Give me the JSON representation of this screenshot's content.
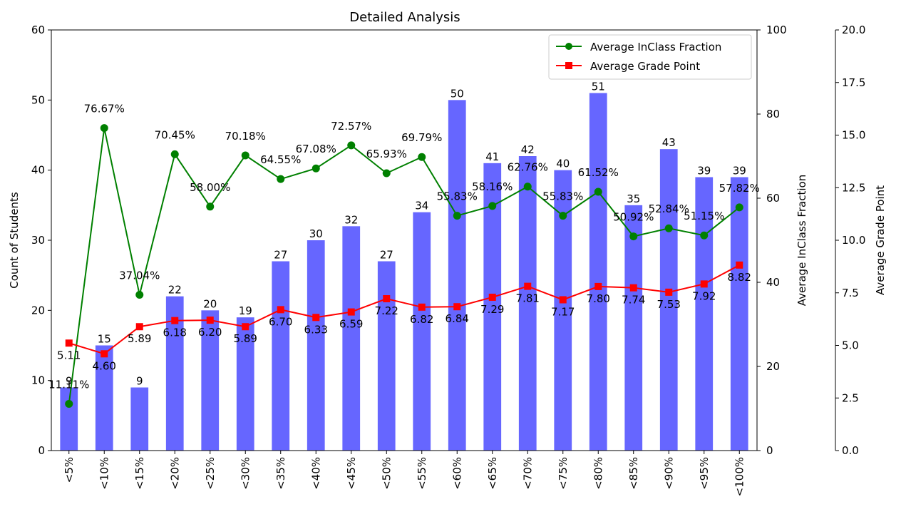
{
  "chart_data": {
    "type": "bar",
    "title": "Detailed Analysis",
    "categories": [
      "<5%",
      "<10%",
      "<15%",
      "<20%",
      "<25%",
      "<30%",
      "<35%",
      "<40%",
      "<45%",
      "<50%",
      "<55%",
      "<60%",
      "<65%",
      "<70%",
      "<75%",
      "<80%",
      "<85%",
      "<90%",
      "<95%",
      "<100%"
    ],
    "bar_series": {
      "values": [
        9,
        15,
        9,
        22,
        20,
        19,
        27,
        30,
        32,
        27,
        34,
        50,
        41,
        42,
        40,
        51,
        35,
        43,
        39,
        39
      ],
      "color": "#6666ff"
    },
    "line_series": [
      {
        "name": "Average InClass Fraction",
        "values": [
          11.11,
          76.67,
          37.04,
          70.45,
          58.0,
          70.18,
          64.55,
          67.08,
          72.57,
          65.93,
          69.79,
          55.83,
          58.16,
          62.76,
          55.83,
          61.52,
          50.92,
          52.84,
          51.15,
          57.82
        ],
        "labels": [
          "11.11%",
          "76.67%",
          "37.04%",
          "70.45%",
          "58.00%",
          "70.18%",
          "64.55%",
          "67.08%",
          "72.57%",
          "65.93%",
          "69.79%",
          "55.83%",
          "58.16%",
          "62.76%",
          "55.83%",
          "61.52%",
          "50.92%",
          "52.84%",
          "51.15%",
          "57.82%"
        ],
        "color": "#008000",
        "marker": "circle",
        "axis": "right1"
      },
      {
        "name": "Average Grade Point",
        "values": [
          5.11,
          4.6,
          5.89,
          6.18,
          6.2,
          5.89,
          6.7,
          6.33,
          6.59,
          7.22,
          6.82,
          6.84,
          7.29,
          7.81,
          7.17,
          7.8,
          7.74,
          7.53,
          7.92,
          8.82
        ],
        "labels": [
          "5.11",
          "4.60",
          "5.89",
          "6.18",
          "6.20",
          "5.89",
          "6.70",
          "6.33",
          "6.59",
          "7.22",
          "6.82",
          "6.84",
          "7.29",
          "7.81",
          "7.17",
          "7.80",
          "7.74",
          "7.53",
          "7.92",
          "8.82"
        ],
        "color": "#ff0000",
        "marker": "square",
        "axis": "right2"
      }
    ],
    "left_axis": {
      "label": "Count of Students",
      "ylim": [
        0,
        60
      ],
      "ticks": [
        "0",
        "10",
        "20",
        "30",
        "40",
        "50",
        "60"
      ]
    },
    "right_axis_1": {
      "label": "Average InClass Fraction",
      "ylim": [
        0,
        100
      ],
      "ticks": [
        "0",
        "20",
        "40",
        "60",
        "80",
        "100"
      ]
    },
    "right_axis_2": {
      "label": "Average Grade Point",
      "ylim": [
        0,
        20
      ],
      "ticks": [
        "0.0",
        "2.5",
        "5.0",
        "7.5",
        "10.0",
        "12.5",
        "15.0",
        "17.5",
        "20.0"
      ]
    },
    "legend_position": "top-right",
    "grid": false
  }
}
